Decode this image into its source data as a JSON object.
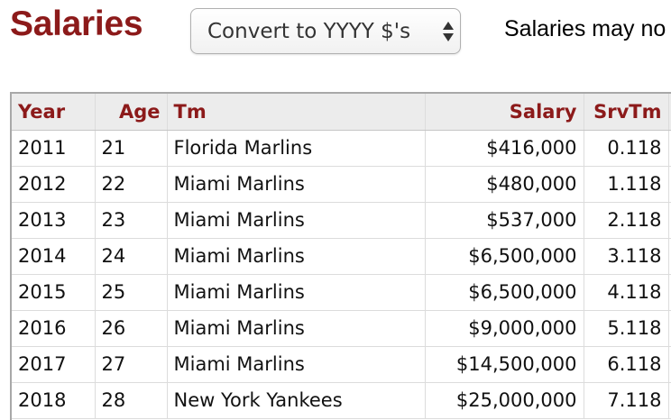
{
  "section": {
    "title": "Salaries",
    "convert_select": {
      "value": "Convert to YYYY $'s"
    },
    "note": "Salaries may no"
  },
  "table": {
    "headers": [
      "Year",
      "Age",
      "Tm",
      "Salary",
      "SrvTm"
    ],
    "rows": [
      {
        "year": "2011",
        "age": "21",
        "team": "Florida Marlins",
        "salary": "$416,000",
        "srvtm": "0.118"
      },
      {
        "year": "2012",
        "age": "22",
        "team": "Miami Marlins",
        "salary": "$480,000",
        "srvtm": "1.118"
      },
      {
        "year": "2013",
        "age": "23",
        "team": "Miami Marlins",
        "salary": "$537,000",
        "srvtm": "2.118"
      },
      {
        "year": "2014",
        "age": "24",
        "team": "Miami Marlins",
        "salary": "$6,500,000",
        "srvtm": "3.118"
      },
      {
        "year": "2015",
        "age": "25",
        "team": "Miami Marlins",
        "salary": "$6,500,000",
        "srvtm": "4.118"
      },
      {
        "year": "2016",
        "age": "26",
        "team": "Miami Marlins",
        "salary": "$9,000,000",
        "srvtm": "5.118"
      },
      {
        "year": "2017",
        "age": "27",
        "team": "Miami Marlins",
        "salary": "$14,500,000",
        "srvtm": "6.118"
      },
      {
        "year": "2018",
        "age": "28",
        "team": "New York Yankees",
        "salary": "$25,000,000",
        "srvtm": "7.118"
      }
    ]
  },
  "colors": {
    "accent": "#8c1a1a",
    "header_bg": "#ececec"
  },
  "icons": {
    "select_arrows": "select-updown-arrows-icon"
  }
}
